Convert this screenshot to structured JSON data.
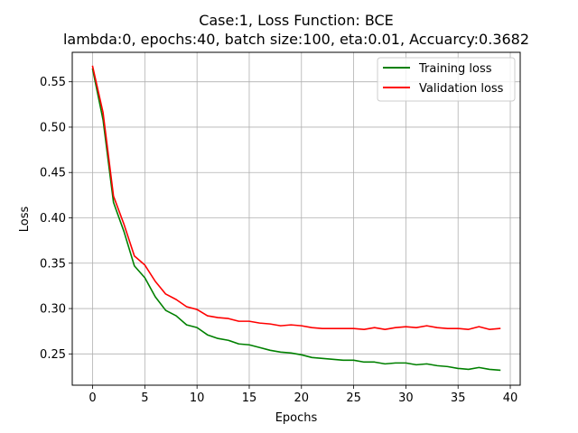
{
  "chart_data": {
    "type": "line",
    "title_line1": "Case:1, Loss Function: BCE",
    "title_line2": "lambda:0, epochs:40, batch size:100, eta:0.01, Accuarcy:0.3682",
    "xlabel": "Epochs",
    "ylabel": "Loss",
    "xlim": [
      -1.95,
      40.95
    ],
    "ylim": [
      0.2155,
      0.5825
    ],
    "xticks": [
      0,
      5,
      10,
      15,
      20,
      25,
      30,
      35,
      40
    ],
    "xtick_labels": [
      "0",
      "5",
      "10",
      "15",
      "20",
      "25",
      "30",
      "35",
      "40"
    ],
    "yticks": [
      0.25,
      0.3,
      0.35,
      0.4,
      0.45,
      0.5,
      0.55
    ],
    "ytick_labels": [
      "0.25",
      "0.30",
      "0.35",
      "0.40",
      "0.45",
      "0.50",
      "0.55"
    ],
    "grid": true,
    "legend_position": "top-right",
    "x": [
      0,
      1,
      2,
      3,
      4,
      5,
      6,
      7,
      8,
      9,
      10,
      11,
      12,
      13,
      14,
      15,
      16,
      17,
      18,
      19,
      20,
      21,
      22,
      23,
      24,
      25,
      26,
      27,
      28,
      29,
      30,
      31,
      32,
      33,
      34,
      35,
      36,
      37,
      38,
      39
    ],
    "series": [
      {
        "name": "Training loss",
        "color": "#008000",
        "values": [
          0.564,
          0.508,
          0.417,
          0.385,
          0.347,
          0.334,
          0.313,
          0.298,
          0.292,
          0.282,
          0.279,
          0.271,
          0.267,
          0.265,
          0.261,
          0.26,
          0.257,
          0.254,
          0.252,
          0.251,
          0.249,
          0.246,
          0.245,
          0.244,
          0.243,
          0.243,
          0.241,
          0.241,
          0.239,
          0.24,
          0.24,
          0.238,
          0.239,
          0.237,
          0.236,
          0.234,
          0.233,
          0.235,
          0.233,
          0.232
        ]
      },
      {
        "name": "Validation loss",
        "color": "#ff0000",
        "values": [
          0.567,
          0.516,
          0.424,
          0.393,
          0.358,
          0.348,
          0.33,
          0.316,
          0.31,
          0.302,
          0.299,
          0.292,
          0.29,
          0.289,
          0.286,
          0.286,
          0.284,
          0.283,
          0.281,
          0.282,
          0.281,
          0.279,
          0.278,
          0.278,
          0.278,
          0.278,
          0.277,
          0.279,
          0.277,
          0.279,
          0.28,
          0.279,
          0.281,
          0.279,
          0.278,
          0.278,
          0.277,
          0.28,
          0.277,
          0.278
        ]
      }
    ]
  }
}
